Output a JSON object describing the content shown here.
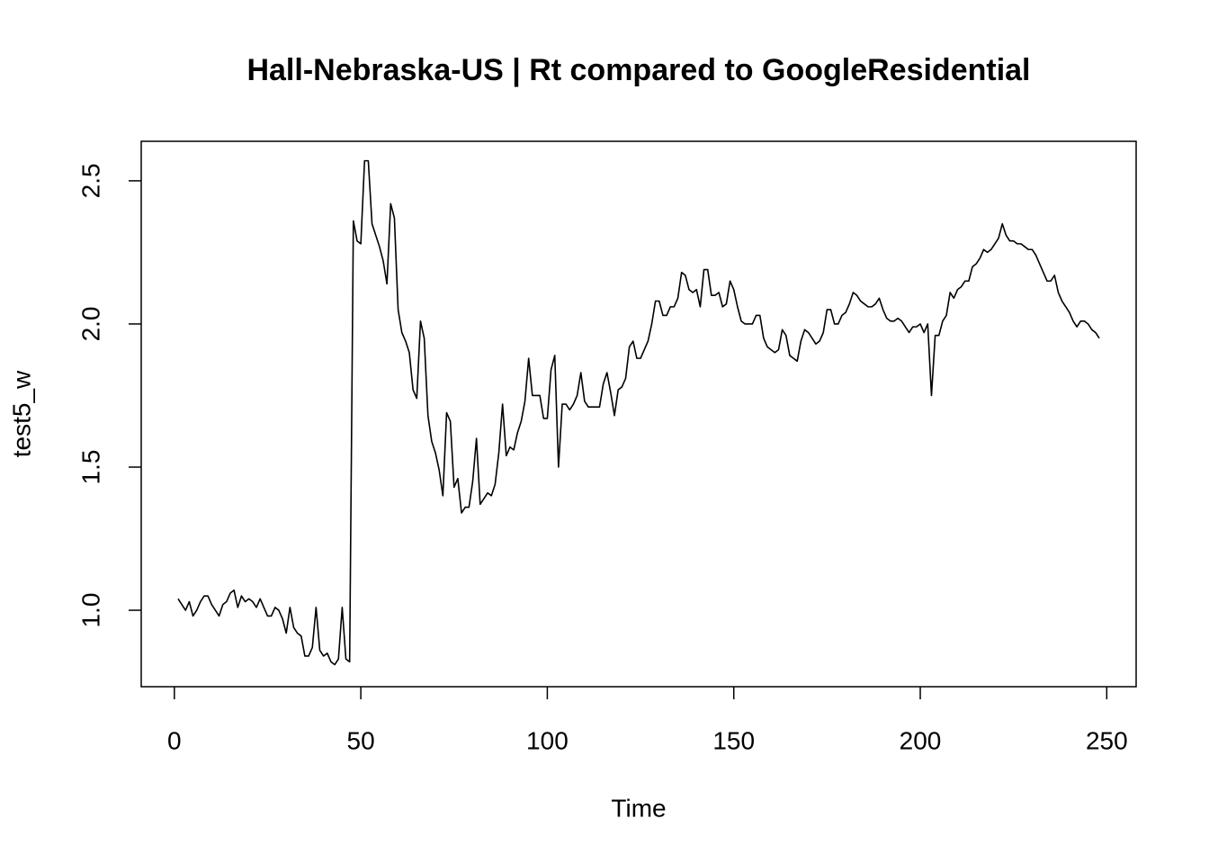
{
  "chart_data": {
    "type": "line",
    "title": "Hall-Nebraska-US | Rt compared to GoogleResidential",
    "x_label": "Time",
    "y_label": "test5_w",
    "x": [
      1,
      2,
      3,
      4,
      5,
      6,
      7,
      8,
      9,
      10,
      11,
      12,
      13,
      14,
      15,
      16,
      17,
      18,
      19,
      20,
      21,
      22,
      23,
      24,
      25,
      26,
      27,
      28,
      29,
      30,
      31,
      32,
      33,
      34,
      35,
      36,
      37,
      38,
      39,
      40,
      41,
      42,
      43,
      44,
      45,
      46,
      47,
      48,
      49,
      50,
      51,
      52,
      53,
      54,
      55,
      56,
      57,
      58,
      59,
      60,
      61,
      62,
      63,
      64,
      65,
      66,
      67,
      68,
      69,
      70,
      71,
      72,
      73,
      74,
      75,
      76,
      77,
      78,
      79,
      80,
      81,
      82,
      83,
      84,
      85,
      86,
      87,
      88,
      89,
      90,
      91,
      92,
      93,
      94,
      95,
      96,
      97,
      98,
      99,
      100,
      101,
      102,
      103,
      104,
      105,
      106,
      107,
      108,
      109,
      110,
      111,
      112,
      113,
      114,
      115,
      116,
      117,
      118,
      119,
      120,
      121,
      122,
      123,
      124,
      125,
      126,
      127,
      128,
      129,
      130,
      131,
      132,
      133,
      134,
      135,
      136,
      137,
      138,
      139,
      140,
      141,
      142,
      143,
      144,
      145,
      146,
      147,
      148,
      149,
      150,
      151,
      152,
      153,
      154,
      155,
      156,
      157,
      158,
      159,
      160,
      161,
      162,
      163,
      164,
      165,
      166,
      167,
      168,
      169,
      170,
      171,
      172,
      173,
      174,
      175,
      176,
      177,
      178,
      179,
      180,
      181,
      182,
      183,
      184,
      185,
      186,
      187,
      188,
      189,
      190,
      191,
      192,
      193,
      194,
      195,
      196,
      197,
      198,
      199,
      200,
      201,
      202,
      203,
      204,
      205,
      206,
      207,
      208,
      209,
      210,
      211,
      212,
      213,
      214,
      215,
      216,
      217,
      218,
      219,
      220,
      221,
      222,
      223,
      224,
      225,
      226,
      227,
      228,
      229,
      230,
      231,
      232,
      233,
      234,
      235,
      236,
      237,
      238,
      239,
      240,
      241,
      242,
      243,
      244,
      245,
      246,
      247,
      248
    ],
    "series": [
      {
        "name": "test5_w",
        "color": "#000000",
        "values": [
          1.04,
          1.02,
          1.0,
          1.03,
          0.98,
          1.0,
          1.03,
          1.05,
          1.05,
          1.02,
          1.0,
          0.98,
          1.02,
          1.03,
          1.06,
          1.07,
          1.01,
          1.05,
          1.03,
          1.04,
          1.03,
          1.01,
          1.04,
          1.01,
          0.98,
          0.98,
          1.01,
          1.0,
          0.97,
          0.92,
          1.01,
          0.94,
          0.92,
          0.91,
          0.84,
          0.84,
          0.87,
          1.01,
          0.86,
          0.84,
          0.85,
          0.82,
          0.81,
          0.83,
          1.01,
          0.83,
          0.82,
          2.36,
          2.29,
          2.28,
          2.57,
          2.57,
          2.35,
          2.31,
          2.27,
          2.22,
          2.14,
          2.42,
          2.37,
          2.05,
          1.97,
          1.94,
          1.9,
          1.77,
          1.74,
          2.01,
          1.95,
          1.68,
          1.59,
          1.55,
          1.49,
          1.4,
          1.69,
          1.66,
          1.43,
          1.46,
          1.34,
          1.36,
          1.36,
          1.45,
          1.6,
          1.37,
          1.39,
          1.41,
          1.4,
          1.44,
          1.55,
          1.72,
          1.54,
          1.57,
          1.56,
          1.62,
          1.66,
          1.73,
          1.88,
          1.75,
          1.75,
          1.75,
          1.67,
          1.67,
          1.84,
          1.89,
          1.5,
          1.72,
          1.72,
          1.7,
          1.72,
          1.75,
          1.83,
          1.73,
          1.71,
          1.71,
          1.71,
          1.71,
          1.79,
          1.83,
          1.76,
          1.68,
          1.77,
          1.78,
          1.81,
          1.92,
          1.94,
          1.88,
          1.88,
          1.91,
          1.94,
          2.0,
          2.08,
          2.08,
          2.03,
          2.03,
          2.06,
          2.06,
          2.09,
          2.18,
          2.17,
          2.12,
          2.11,
          2.12,
          2.06,
          2.19,
          2.19,
          2.1,
          2.1,
          2.11,
          2.06,
          2.07,
          2.15,
          2.12,
          2.06,
          2.01,
          2.0,
          2.0,
          2.0,
          2.03,
          2.03,
          1.95,
          1.92,
          1.91,
          1.9,
          1.91,
          1.98,
          1.96,
          1.89,
          1.88,
          1.87,
          1.94,
          1.98,
          1.97,
          1.95,
          1.93,
          1.94,
          1.97,
          2.05,
          2.05,
          2.0,
          2.0,
          2.03,
          2.04,
          2.07,
          2.11,
          2.1,
          2.08,
          2.07,
          2.06,
          2.06,
          2.07,
          2.09,
          2.05,
          2.02,
          2.01,
          2.01,
          2.02,
          2.01,
          1.99,
          1.97,
          1.99,
          1.99,
          2.0,
          1.97,
          2.0,
          1.75,
          1.96,
          1.96,
          2.01,
          2.03,
          2.11,
          2.09,
          2.12,
          2.13,
          2.15,
          2.15,
          2.2,
          2.21,
          2.23,
          2.26,
          2.25,
          2.26,
          2.28,
          2.3,
          2.35,
          2.31,
          2.29,
          2.29,
          2.28,
          2.28,
          2.27,
          2.26,
          2.26,
          2.24,
          2.21,
          2.18,
          2.15,
          2.15,
          2.17,
          2.11,
          2.08,
          2.06,
          2.04,
          2.01,
          1.99,
          2.01,
          2.01,
          2.0,
          1.98,
          1.97,
          1.95
        ]
      }
    ],
    "xlim": [
      -8.88,
      257.88
    ],
    "xticks": [
      0,
      50,
      100,
      150,
      200,
      250
    ],
    "ylim": [
      0.733,
      2.638
    ],
    "yticks": [
      {
        "value": 1,
        "label": "1.0"
      },
      1.5,
      {
        "value": 2,
        "label": "2.0"
      },
      2.5
    ],
    "grid": false
  }
}
